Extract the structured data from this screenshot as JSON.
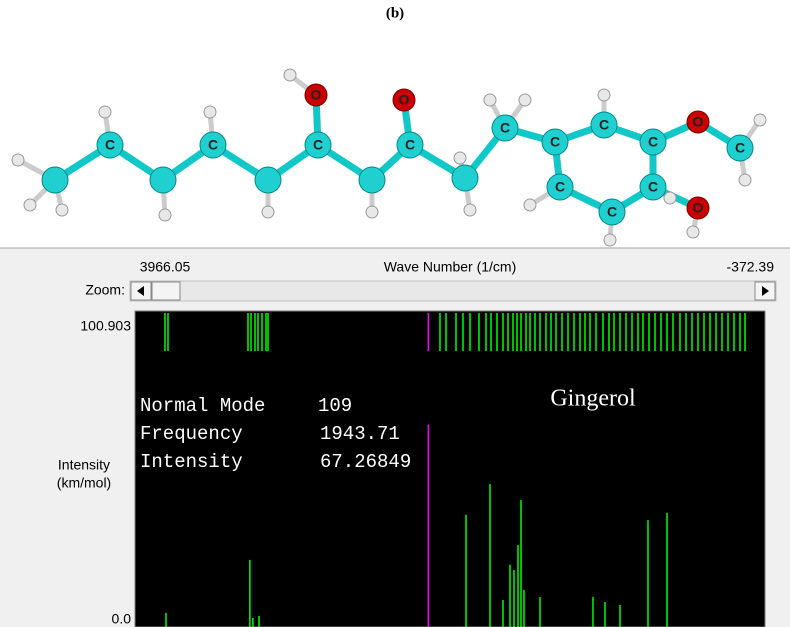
{
  "caption": "(b)",
  "molecule": {
    "atom_labels": [
      "C",
      "C",
      "C",
      "C",
      "C",
      "C",
      "C",
      "C",
      "C",
      "C",
      "C",
      "C",
      "O",
      "O",
      "O",
      "O"
    ]
  },
  "spectrum": {
    "x_label": "Wave Number (1/cm)",
    "xlim": [
      3966.05,
      -372.39
    ],
    "xticks": [
      3966.05,
      -372.39
    ],
    "zoom_label": "Zoom:",
    "y_label": [
      "Intensity",
      "(km/mol)"
    ],
    "ylim": [
      0,
      100.903
    ],
    "yticks": [
      {
        "value": 0,
        "label": "0.0"
      },
      100.903
    ],
    "title": "Gingerol",
    "selected": {
      "mode_label": "Normal Mode",
      "mode": 109,
      "frequency_label": "Frequency",
      "frequency": 1943.71,
      "intensity_label": "Intensity",
      "intensity": 67.26849,
      "color": "#ff00ff"
    },
    "peaks": {
      "color": "#00ff00",
      "x": [
        3764.7,
        3182.6,
        3161.7,
        3119.2,
        1682.3,
        1515.7,
        1425.5,
        1376.9,
        1349.1,
        1321.4,
        1300.5,
        1279.7,
        1168.6,
        800.8,
        717.5,
        613.3,
        419.0,
        287.1
      ],
      "y": [
        2.4,
        20.7,
        0.7,
        1.4,
        36.2,
        46.8,
        6.9,
        19.0,
        17.2,
        25.8,
        41.3,
        10.3,
        7.9,
        7.9,
        6.2,
        5.2,
        34.4,
        36.9
      ]
    },
    "modes": [
      3771.7,
      3750.9,
      3195.5,
      3174.7,
      3147.0,
      3126.1,
      3098.4,
      3070.6,
      3056.7,
      1862.8,
      1821.1,
      1751.7,
      1703.1,
      1654.5,
      1592.1,
      1543.5,
      1508.8,
      1467.1,
      1425.5,
      1390.8,
      1356.1,
      1328.3,
      1300.5,
      1265.8,
      1238.1,
      1203.4,
      1168.6,
      1127.0,
      1092.3,
      1057.6,
      1015.9,
      974.3,
      932.6,
      891.0,
      856.3,
      821.6,
      779.9,
      731.4,
      689.7,
      655.0,
      613.3,
      571.7,
      530.0,
      488.4,
      453.7,
      412.0,
      370.4,
      328.7,
      287.1,
      245.4,
      196.9,
      155.2,
      113.5,
      71.9,
      30.2,
      -11.4,
      -53.1,
      -94.7,
      -136.4,
      -178.0,
      -219.7,
      -254.4
    ]
  }
}
